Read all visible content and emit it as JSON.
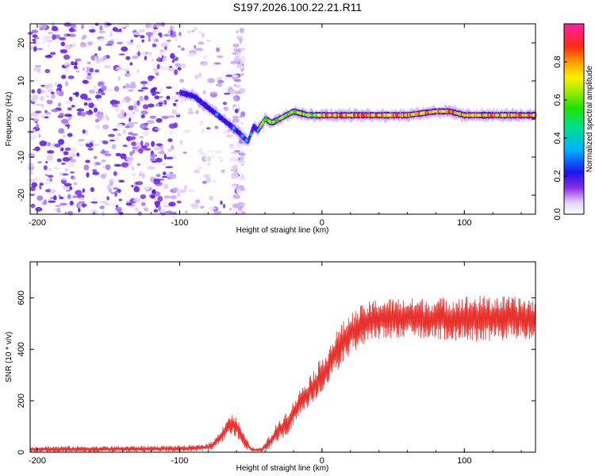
{
  "title": "S197.2026.100.22.21.R11",
  "chart_data": [
    {
      "type": "heatmap",
      "xlabel": "Height of straight line (km)",
      "ylabel": "Frequency (Hz)",
      "xlim": [
        -205,
        150
      ],
      "ylim": [
        -25,
        25
      ],
      "x_ticks": [
        -200,
        -100,
        0,
        100
      ],
      "y_ticks": [
        -20,
        -10,
        0,
        10,
        20
      ],
      "colorbar": {
        "label": "Normalized spectral amplitude",
        "range": [
          0,
          1
        ],
        "ticks": [
          "0.0",
          "0.2",
          "0.4",
          "0.6",
          "0.8"
        ]
      },
      "ridge": {
        "x": [
          -100,
          -90,
          -80,
          -70,
          -60,
          -52,
          -48,
          -45,
          -40,
          -35,
          -30,
          -25,
          -20,
          -10,
          0,
          20,
          40,
          60,
          80,
          90,
          100,
          120,
          150
        ],
        "y": [
          7,
          6,
          3,
          0,
          -3,
          -6,
          -2,
          -3,
          0,
          -1,
          0,
          1,
          2,
          1,
          1,
          1,
          1,
          1,
          2,
          2,
          1,
          1,
          1
        ]
      }
    },
    {
      "type": "line",
      "xlabel": "Height of straight line (km)",
      "ylabel": "SNR (10 * v/v)",
      "xlim": [
        -205,
        150
      ],
      "ylim": [
        0,
        740
      ],
      "x_ticks": [
        -200,
        -100,
        0,
        100
      ],
      "y_ticks": [
        0,
        200,
        400,
        600
      ],
      "color": "#e8322e",
      "series": [
        {
          "name": "SNR",
          "x": [
            -205,
            -150,
            -110,
            -90,
            -80,
            -75,
            -70,
            -65,
            -60,
            -55,
            -50,
            -45,
            -42,
            -40,
            -35,
            -30,
            -25,
            -20,
            -15,
            -10,
            -5,
            0,
            5,
            10,
            15,
            20,
            30,
            40,
            60,
            80,
            100,
            120,
            150
          ],
          "base": [
            12,
            12,
            14,
            15,
            20,
            35,
            70,
            110,
            100,
            45,
            12,
            8,
            10,
            20,
            50,
            90,
            110,
            150,
            200,
            230,
            260,
            300,
            340,
            390,
            430,
            460,
            500,
            520,
            520,
            520,
            520,
            520,
            520
          ],
          "amp": [
            12,
            12,
            12,
            12,
            15,
            20,
            30,
            40,
            40,
            30,
            10,
            8,
            10,
            20,
            30,
            40,
            50,
            50,
            50,
            60,
            70,
            70,
            80,
            80,
            80,
            80,
            80,
            80,
            80,
            80,
            90,
            90,
            80
          ]
        }
      ]
    }
  ]
}
